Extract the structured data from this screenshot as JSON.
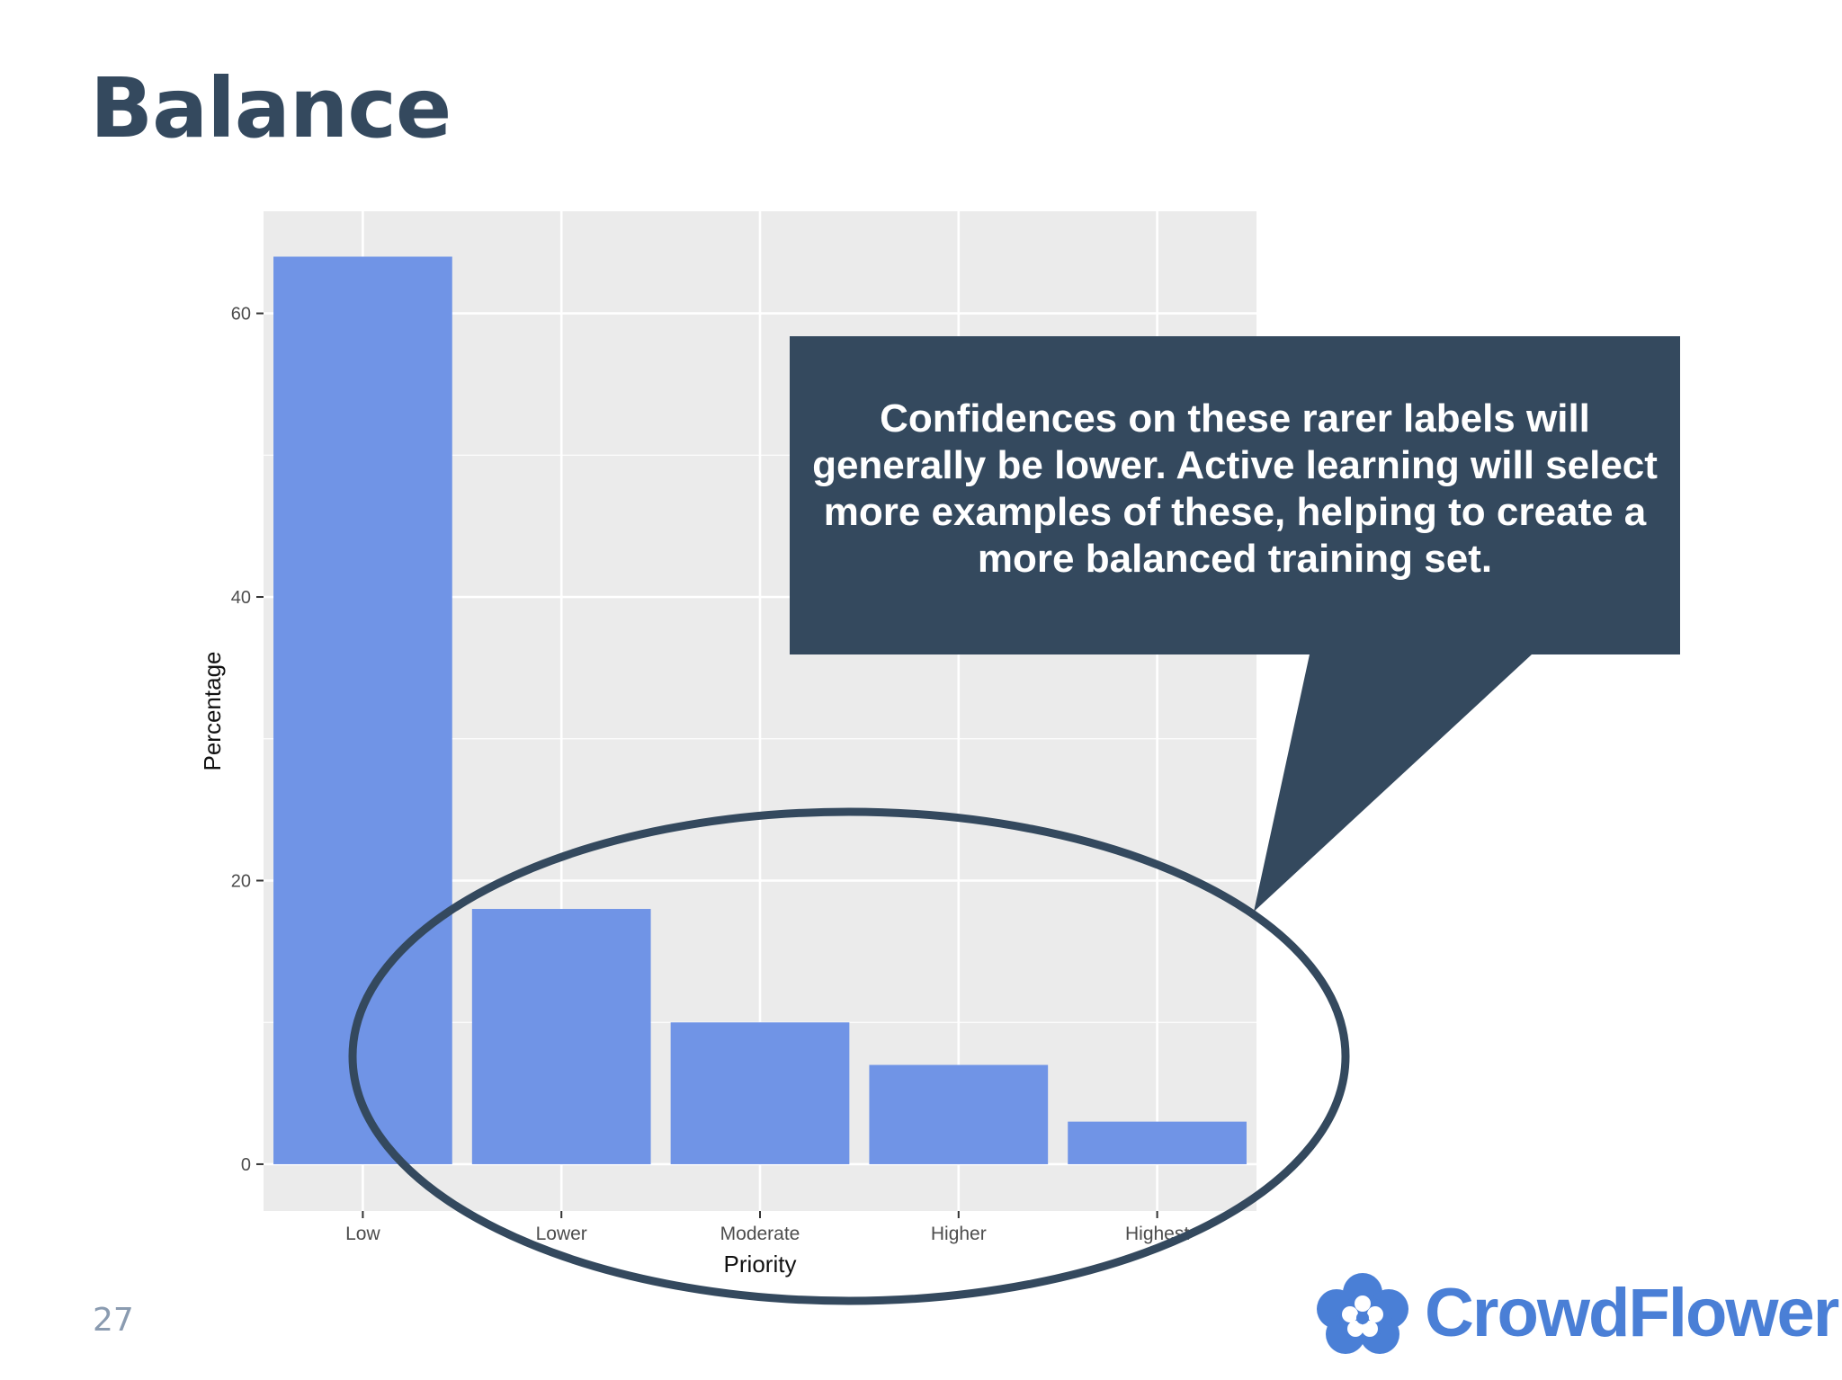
{
  "slide": {
    "title": "Balance",
    "page_number": "27",
    "callout": "Confidences on these rarer labels will generally be lower. Active learning will select more examples of these, helping to create a more balanced training set.",
    "logo_text": "CrowdFlower"
  },
  "colors": {
    "title": "#34495e",
    "bar": "#7094e6",
    "panel": "#ebebeb",
    "grid": "#ffffff",
    "callout_bg": "#34495e",
    "ellipse_stroke": "#34495e",
    "logo": "#4a7fd6"
  },
  "icons": {
    "logo": "flower-cloud-icon"
  },
  "chart_data": {
    "type": "bar",
    "categories": [
      "Low",
      "Lower",
      "Moderate",
      "Higher",
      "Highest"
    ],
    "values": [
      64,
      18,
      10,
      7,
      3
    ],
    "title": "",
    "xlabel": "Priority",
    "ylabel": "Percentage",
    "ylim": [
      -3.3,
      67.2
    ],
    "yticks": [
      0,
      20,
      40,
      60
    ],
    "grid": true,
    "legend": "none"
  }
}
